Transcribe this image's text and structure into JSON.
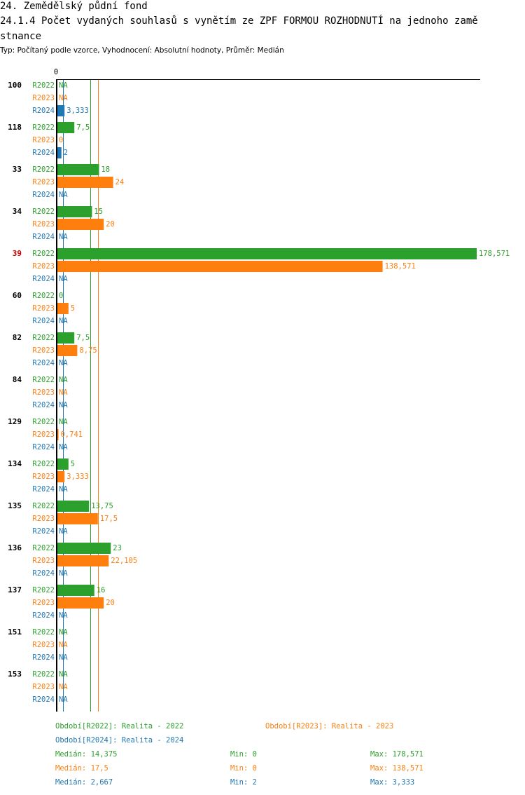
{
  "header": {
    "section": "24. Zemědělský půdní fond",
    "title_line1": "24.1.4 Počet vydaných souhlasů s vynětím ze ZPF FORMOU ROZHODNUTÍ na jednoho zamě",
    "title_line2": "stnance",
    "subtitle": "Typ: Počítaný podle vzorce, Vyhodnocení: Absolutní hodnoty, Průměr: Medián"
  },
  "colors": {
    "R2022": "#2ca02c",
    "R2023": "#ff7f0e",
    "R2024": "#1f77b4",
    "highlight": "#cc0000",
    "axis": "#000000"
  },
  "chart_data": {
    "type": "bar",
    "orientation": "horizontal",
    "axis_zero_label": "0",
    "xlim": [
      0,
      178.571
    ],
    "series_names": [
      "R2022",
      "R2023",
      "R2024"
    ],
    "highlight_category": "39",
    "categories": [
      {
        "label": "100",
        "values": {
          "R2022": null,
          "R2023": null,
          "R2024": 3.333
        },
        "display": {
          "R2022": "NA",
          "R2023": "NA",
          "R2024": "3,333"
        }
      },
      {
        "label": "118",
        "values": {
          "R2022": 7.5,
          "R2023": 0,
          "R2024": 2
        },
        "display": {
          "R2022": "7,5",
          "R2023": "0",
          "R2024": "2"
        }
      },
      {
        "label": "33",
        "values": {
          "R2022": 18,
          "R2023": 24,
          "R2024": null
        },
        "display": {
          "R2022": "18",
          "R2023": "24",
          "R2024": "NA"
        }
      },
      {
        "label": "34",
        "values": {
          "R2022": 15,
          "R2023": 20,
          "R2024": null
        },
        "display": {
          "R2022": "15",
          "R2023": "20",
          "R2024": "NA"
        }
      },
      {
        "label": "39",
        "values": {
          "R2022": 178.571,
          "R2023": 138.571,
          "R2024": null
        },
        "display": {
          "R2022": "178,571",
          "R2023": "138,571",
          "R2024": "NA"
        }
      },
      {
        "label": "60",
        "values": {
          "R2022": 0,
          "R2023": 5,
          "R2024": null
        },
        "display": {
          "R2022": "0",
          "R2023": "5",
          "R2024": "NA"
        }
      },
      {
        "label": "82",
        "values": {
          "R2022": 7.5,
          "R2023": 8.75,
          "R2024": null
        },
        "display": {
          "R2022": "7,5",
          "R2023": "8,75",
          "R2024": "NA"
        }
      },
      {
        "label": "84",
        "values": {
          "R2022": null,
          "R2023": null,
          "R2024": null
        },
        "display": {
          "R2022": "NA",
          "R2023": "NA",
          "R2024": "NA"
        }
      },
      {
        "label": "129",
        "values": {
          "R2022": null,
          "R2023": 0.741,
          "R2024": null
        },
        "display": {
          "R2022": "NA",
          "R2023": "0,741",
          "R2024": "NA"
        }
      },
      {
        "label": "134",
        "values": {
          "R2022": 5,
          "R2023": 3.333,
          "R2024": null
        },
        "display": {
          "R2022": "5",
          "R2023": "3,333",
          "R2024": "NA"
        }
      },
      {
        "label": "135",
        "values": {
          "R2022": 13.75,
          "R2023": 17.5,
          "R2024": null
        },
        "display": {
          "R2022": "13,75",
          "R2023": "17,5",
          "R2024": "NA"
        }
      },
      {
        "label": "136",
        "values": {
          "R2022": 23,
          "R2023": 22.105,
          "R2024": null
        },
        "display": {
          "R2022": "23",
          "R2023": "22,105",
          "R2024": "NA"
        }
      },
      {
        "label": "137",
        "values": {
          "R2022": 16,
          "R2023": 20,
          "R2024": null
        },
        "display": {
          "R2022": "16",
          "R2023": "20",
          "R2024": "NA"
        }
      },
      {
        "label": "151",
        "values": {
          "R2022": null,
          "R2023": null,
          "R2024": null
        },
        "display": {
          "R2022": "NA",
          "R2023": "NA",
          "R2024": "NA"
        }
      },
      {
        "label": "153",
        "values": {
          "R2022": null,
          "R2023": null,
          "R2024": null
        },
        "display": {
          "R2022": "NA",
          "R2023": "NA",
          "R2024": "NA"
        }
      }
    ],
    "median_lines": {
      "R2022": 14.375,
      "R2023": 17.5,
      "R2024": 2.667
    }
  },
  "legend": {
    "r2022": "Období[R2022]: Realita - 2022",
    "r2023": "Období[R2023]: Realita - 2023",
    "r2024": "Období[R2024]: Realita - 2024"
  },
  "stats": {
    "r2022": {
      "median": "Medián: 14,375",
      "min": "Min: 0",
      "max": "Max: 178,571"
    },
    "r2023": {
      "median": "Medián: 17,5",
      "min": "Min: 0",
      "max": "Max: 138,571"
    },
    "r2024": {
      "median": "Medián: 2,667",
      "min": "Min: 2",
      "max": "Max: 3,333"
    }
  }
}
